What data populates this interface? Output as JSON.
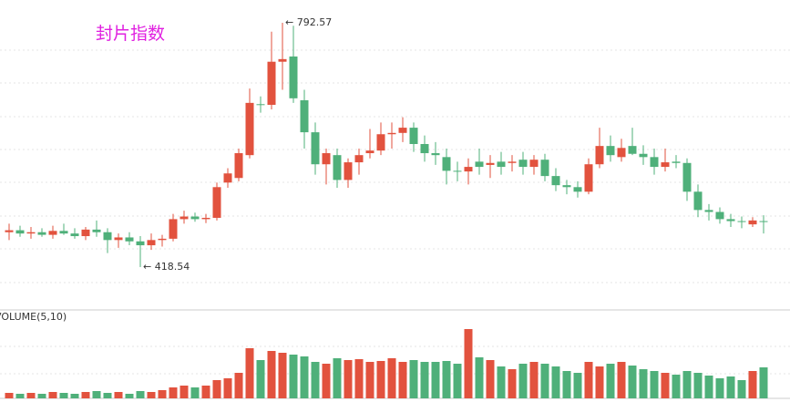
{
  "chart_data": {
    "type": "candlestick",
    "title": "封片指数",
    "volume_title": "VOLUME(5,10)",
    "up_color": "#e2523e",
    "down_color": "#4fb07a",
    "ylim": [
      353,
      827.5
    ],
    "volume_ylim": [
      0,
      82
    ],
    "open": [
      472,
      475,
      470,
      472,
      468,
      474,
      470,
      466,
      476,
      472,
      460,
      464,
      458,
      452,
      460,
      462,
      492,
      496,
      492,
      494,
      548,
      555,
      590,
      668,
      667,
      733,
      741,
      674,
      625,
      576,
      590,
      552,
      579,
      593,
      597,
      622,
      624,
      632,
      607,
      593,
      587,
      566,
      565,
      580,
      575,
      580,
      578,
      583,
      572,
      583,
      558,
      544,
      541,
      534,
      576,
      604,
      587,
      604,
      592,
      587,
      572,
      580,
      578,
      534,
      506,
      503,
      492,
      489,
      484,
      489
    ],
    "high": [
      485,
      482,
      480,
      478,
      482,
      485,
      478,
      480,
      490,
      478,
      470,
      472,
      466,
      470,
      468,
      500,
      505,
      502,
      500,
      548,
      570,
      600,
      692,
      680,
      779,
      792.57,
      788,
      690,
      640,
      600,
      600,
      585,
      600,
      630,
      640,
      640,
      648,
      640,
      620,
      610,
      600,
      580,
      585,
      600,
      590,
      595,
      590,
      595,
      590,
      592,
      570,
      552,
      550,
      585,
      632,
      620,
      615,
      632,
      605,
      600,
      600,
      590,
      585,
      545,
      515,
      510,
      500,
      496,
      495,
      498
    ],
    "low": [
      460,
      465,
      462,
      465,
      462,
      468,
      462,
      460,
      465,
      440,
      448,
      452,
      418.54,
      445,
      450,
      458,
      485,
      488,
      486,
      490,
      540,
      550,
      585,
      655,
      660,
      690,
      670,
      600,
      560,
      545,
      540,
      540,
      560,
      585,
      590,
      600,
      610,
      595,
      580,
      575,
      545,
      550,
      545,
      560,
      555,
      560,
      565,
      560,
      560,
      550,
      535,
      530,
      525,
      530,
      570,
      580,
      580,
      590,
      575,
      560,
      565,
      570,
      520,
      495,
      490,
      485,
      480,
      478,
      480,
      470
    ],
    "close": [
      475,
      470,
      472,
      468,
      474,
      470,
      466,
      476,
      472,
      460,
      464,
      458,
      452,
      460,
      462,
      492,
      496,
      492,
      494,
      541,
      562,
      593,
      670,
      667,
      733,
      737,
      677,
      625,
      576,
      593,
      552,
      579,
      590,
      597,
      622,
      624,
      632,
      607,
      593,
      590,
      566,
      565,
      572,
      572,
      578,
      572,
      580,
      572,
      583,
      558,
      544,
      541,
      534,
      576,
      604,
      590,
      601,
      592,
      587,
      572,
      579,
      578,
      534,
      506,
      503,
      492,
      489,
      488,
      490,
      488
    ],
    "volume": [
      6,
      5,
      6,
      5,
      7,
      6,
      5,
      7,
      8,
      6,
      7,
      5,
      8,
      7,
      9,
      12,
      14,
      12,
      14,
      20,
      22,
      28,
      55,
      42,
      52,
      50,
      48,
      46,
      40,
      38,
      44,
      42,
      43,
      40,
      41,
      44,
      40,
      42,
      40,
      40,
      41,
      38,
      76,
      45,
      42,
      35,
      32,
      38,
      40,
      38,
      35,
      30,
      28,
      40,
      35,
      38,
      40,
      36,
      32,
      30,
      28,
      26,
      30,
      28,
      25,
      22,
      24,
      20,
      30,
      34
    ],
    "annotations": [
      {
        "label": "← 792.57",
        "value": 792.57
      },
      {
        "label": "← 418.54",
        "value": 418.54
      }
    ]
  }
}
